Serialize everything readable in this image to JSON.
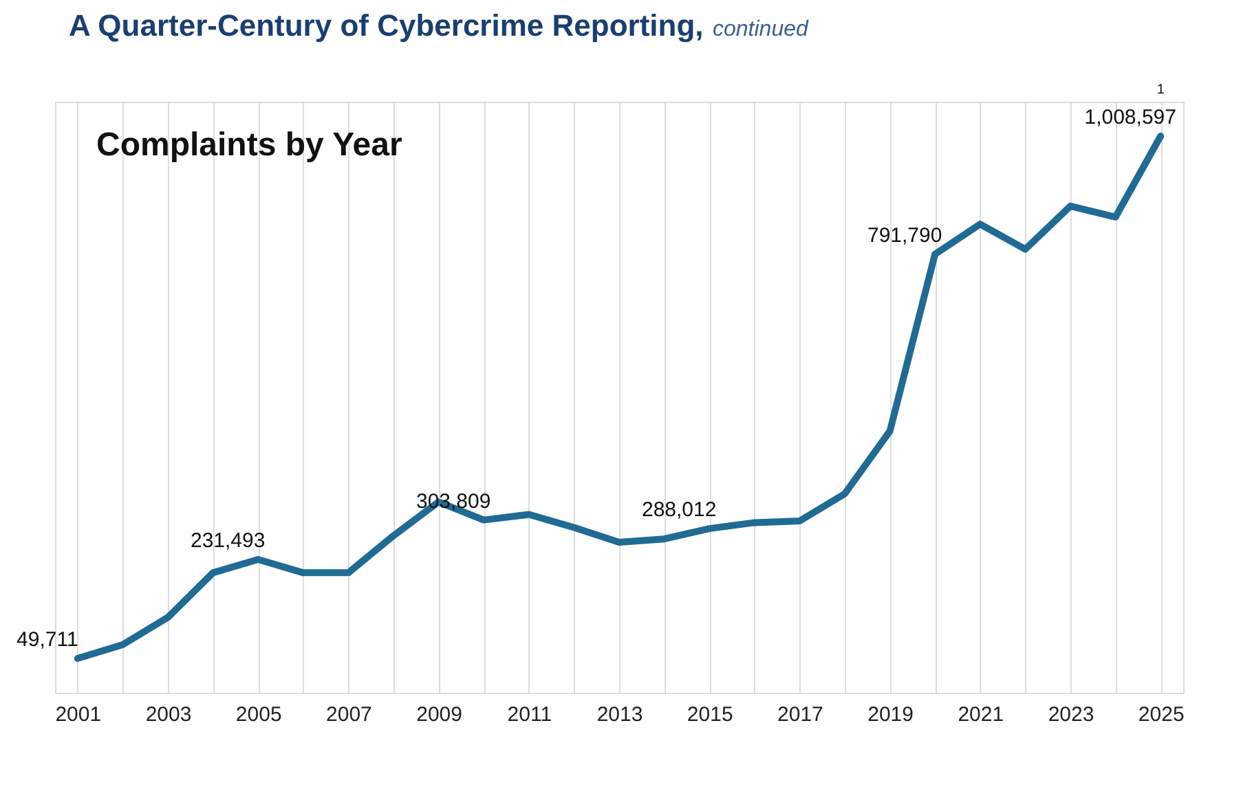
{
  "chart_data": {
    "type": "line",
    "title": "A Quarter-Century of Cybercrime Reporting,",
    "subtitle": "continued",
    "annotations": [
      "Complaints by Year",
      {
        "text": "1",
        "x": "2025",
        "y": 1008597
      }
    ],
    "categories": [
      "2001",
      null,
      "2003",
      null,
      "2005",
      null,
      "2007",
      null,
      "2009",
      null,
      "2011",
      null,
      "2013",
      null,
      "2015",
      null,
      "2017",
      null,
      "2019",
      null,
      "2021",
      null,
      "2023",
      null,
      "2025"
    ],
    "series": [
      {
        "color": "#1f6b94",
        "values": [
          49711,
          75000,
          125000,
          207000,
          231493,
          207000,
          207000,
          275000,
          337000,
          303809,
          314000,
          290000,
          263000,
          269000,
          288012,
          299000,
          302000,
          352000,
          467000,
          791790,
          847000,
          801000,
          880000,
          860000,
          1008597
        ],
        "value_labels": [
          "49,711",
          null,
          null,
          null,
          "231,493",
          null,
          null,
          null,
          null,
          "303,809",
          null,
          null,
          null,
          null,
          "288,012",
          null,
          null,
          null,
          null,
          "791,790",
          null,
          null,
          null,
          null,
          "1,008,597"
        ]
      }
    ],
    "grid": "x",
    "legend": false,
    "marker": "none",
    "line_style": "solid"
  }
}
